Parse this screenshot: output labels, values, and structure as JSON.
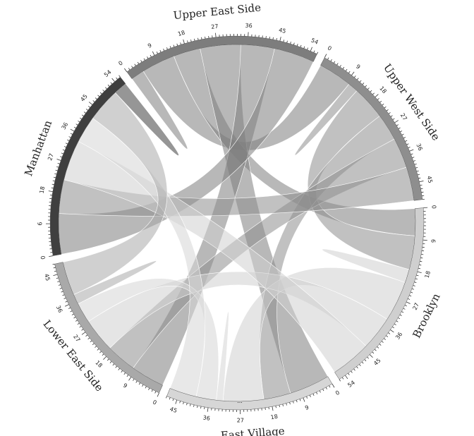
{
  "chart_data": {
    "type": "chord",
    "groups": [
      {
        "name": "Upper East Side",
        "total": 56,
        "color": "#7d7d7d",
        "ticks": [
          "0",
          "9",
          "18",
          "27",
          "36",
          "45",
          "54"
        ]
      },
      {
        "name": "Upper West Side",
        "total": 50,
        "color": "#8e8e8e",
        "ticks": [
          "0",
          "9",
          "18",
          "27",
          "36",
          "45"
        ]
      },
      {
        "name": "Brooklyn",
        "total": 56,
        "color": "#cfcfcf",
        "ticks": [
          "0",
          "9",
          "18",
          "27",
          "36",
          "45",
          "54"
        ]
      },
      {
        "name": "East Village",
        "total": 48,
        "color": "#d6d6d6",
        "ticks": [
          "0",
          "9",
          "18",
          "27",
          "36",
          "45"
        ]
      },
      {
        "name": "Lower East Side",
        "total": 48,
        "color": "#a9a9a9",
        "ticks": [
          "0",
          "9",
          "18",
          "27",
          "36",
          "45"
        ]
      },
      {
        "name": "Manhattan",
        "total": 56,
        "color": "#3f3f3f",
        "ticks": [
          "0",
          "9",
          "18",
          "27",
          "36",
          "45",
          "54"
        ]
      }
    ],
    "matrix": [
      [
        4,
        10,
        8,
        12,
        10,
        12
      ],
      [
        10,
        3,
        10,
        8,
        9,
        10
      ],
      [
        8,
        10,
        4,
        12,
        10,
        12
      ],
      [
        12,
        8,
        12,
        2,
        6,
        8
      ],
      [
        10,
        9,
        10,
        6,
        3,
        10
      ],
      [
        12,
        10,
        12,
        8,
        10,
        4
      ]
    ],
    "extra_label": "..."
  }
}
